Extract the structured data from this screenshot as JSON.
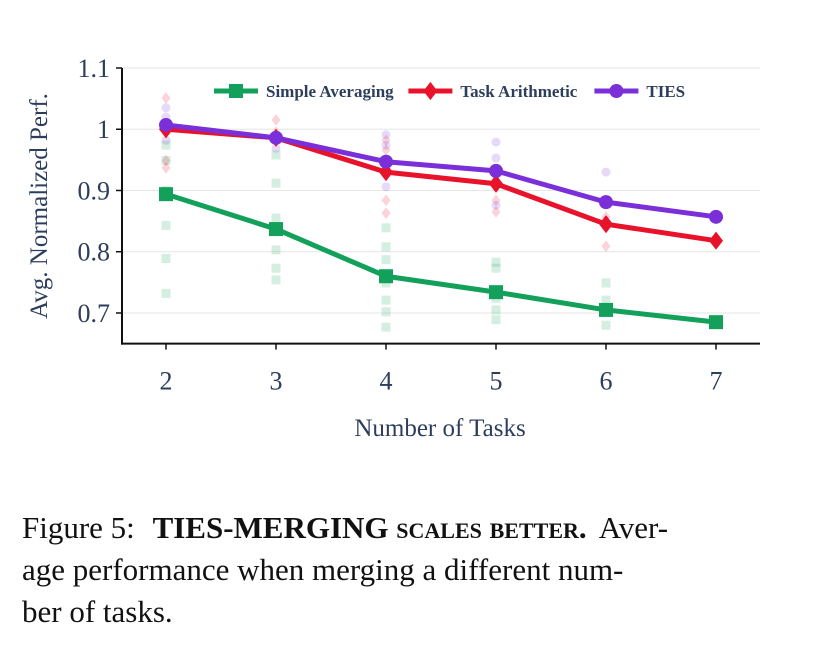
{
  "chart_data": {
    "type": "line",
    "x_label": "Number of Tasks",
    "y_label": "Avg. Normalized Perf.",
    "x": [
      2,
      3,
      4,
      5,
      6,
      7
    ],
    "xlim": [
      1.6,
      7.4
    ],
    "xticks": [
      2,
      3,
      4,
      5,
      6,
      7
    ],
    "ylim": [
      0.65,
      1.1
    ],
    "yticks": [
      0.7,
      0.8,
      0.9,
      1,
      1.1
    ],
    "grid": true,
    "legend": "upper center",
    "series": [
      {
        "name": "Simple Averaging",
        "color": "#12a05b",
        "marker": "square",
        "values": [
          0.894,
          0.837,
          0.76,
          0.734,
          0.705,
          0.685
        ],
        "runs": [
          [
            0.974,
            0.949,
            0.9,
            0.843,
            0.789,
            0.732
          ],
          [
            0.958,
            0.912,
            0.855,
            0.803,
            0.773,
            0.754
          ],
          [
            0.839,
            0.808,
            0.787,
            0.749,
            0.721,
            0.702,
            0.677
          ],
          [
            0.783,
            0.773,
            0.724,
            0.705,
            0.689
          ],
          [
            0.749,
            0.721,
            0.702,
            0.68
          ],
          []
        ]
      },
      {
        "name": "Task Arithmetic",
        "color": "#e8132b",
        "marker": "diamond",
        "values": [
          1.0,
          0.986,
          0.93,
          0.911,
          0.845,
          0.818
        ],
        "runs": [
          [
            1.051,
            0.949,
            0.937
          ],
          [
            1.015,
            0.995
          ],
          [
            0.982,
            0.966,
            0.884,
            0.863
          ],
          [
            0.884,
            0.865
          ],
          [
            0.857,
            0.809
          ],
          []
        ]
      },
      {
        "name": "TIES",
        "color": "#7b2fd8",
        "marker": "circle",
        "values": [
          1.007,
          0.986,
          0.947,
          0.932,
          0.881,
          0.857
        ],
        "runs": [
          [
            1.035,
            1.02,
            0.982
          ],
          [
            0.969
          ],
          [
            0.991,
            0.974,
            0.906
          ],
          [
            0.979,
            0.953,
            0.925,
            0.876
          ],
          [
            0.93
          ],
          []
        ]
      }
    ],
    "caption": {
      "label": "Figure 5:",
      "bold": "TIES-MERGING scales better.",
      "lines": [
        "Aver-",
        "age performance when merging a different num-",
        "ber of tasks."
      ]
    }
  }
}
